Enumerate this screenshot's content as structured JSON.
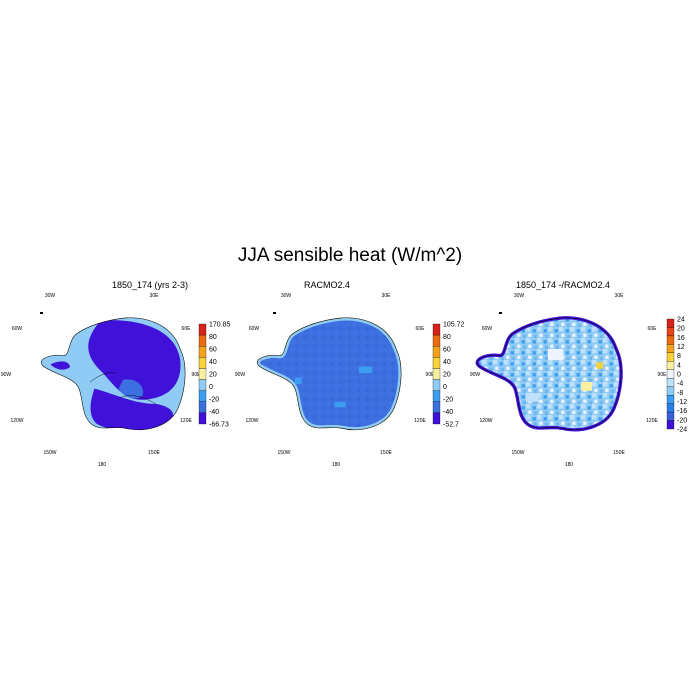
{
  "title": "JJA sensible heat (W/m^2)",
  "colors": {
    "c1": "#4011d8",
    "c2": "#3c6fe0",
    "c3": "#3b9ef0",
    "c4": "#8fcbf4",
    "c5": "#f6f0a0",
    "c6": "#f8d23a",
    "c7": "#f4a21c",
    "c8": "#ec6a10",
    "c9": "#d8211a"
  },
  "panels": [
    {
      "title": "1850_174 (yrs 2-3)",
      "lon_labels": {
        "w30": "30W",
        "e30": "30E",
        "w60": "60W",
        "e60": "60E",
        "w90": "90W",
        "e90": "90E",
        "w120": "120W",
        "e120": "120E",
        "w150": "150W",
        "e150": "150E",
        "s180": "180"
      },
      "colorbar": {
        "labels": [
          "170.85",
          "80",
          "60",
          "40",
          "20",
          "0",
          "-20",
          "-40",
          "-66.73"
        ],
        "colors": [
          "#d8211a",
          "#ec6a10",
          "#f4a21c",
          "#f8d23a",
          "#f6f0a0",
          "#8fcbf4",
          "#3b9ef0",
          "#3c6fe0",
          "#4011d8"
        ]
      }
    },
    {
      "title": "RACMO2.4",
      "lon_labels": {
        "w30": "30W",
        "e30": "30E",
        "w60": "60W",
        "e60": "60E",
        "w90": "90W",
        "e90": "90E",
        "w120": "120W",
        "e120": "120E",
        "w150": "150W",
        "e150": "150E",
        "s180": "180"
      },
      "colorbar": {
        "labels": [
          "105.72",
          "80",
          "60",
          "40",
          "20",
          "0",
          "-20",
          "-40",
          "-52.7"
        ],
        "colors": [
          "#d8211a",
          "#ec6a10",
          "#f4a21c",
          "#f8d23a",
          "#f6f0a0",
          "#8fcbf4",
          "#3b9ef0",
          "#3c6fe0",
          "#4011d8"
        ]
      }
    },
    {
      "title": "1850_174 -/RACMO2.4",
      "lon_labels": {
        "w30": "30W",
        "e30": "30E",
        "w60": "60W",
        "e60": "60E",
        "w90": "90W",
        "e90": "90E",
        "w120": "120W",
        "e120": "120E",
        "w150": "150W",
        "e150": "150E",
        "s180": "180"
      },
      "colorbar": {
        "labels": [
          "24",
          "20",
          "16",
          "12",
          "8",
          "4",
          "0",
          "-4",
          "-8",
          "-12",
          "-16",
          "-20",
          "-24"
        ],
        "colors": [
          "#d8211a",
          "#e8421a",
          "#ec6a10",
          "#f4a21c",
          "#f8d23a",
          "#f6f0a0",
          "#eef4ff",
          "#bfe0fa",
          "#8fcbf4",
          "#3b9ef0",
          "#2a7fe6",
          "#3c5fe0",
          "#4011d8"
        ]
      }
    }
  ]
}
